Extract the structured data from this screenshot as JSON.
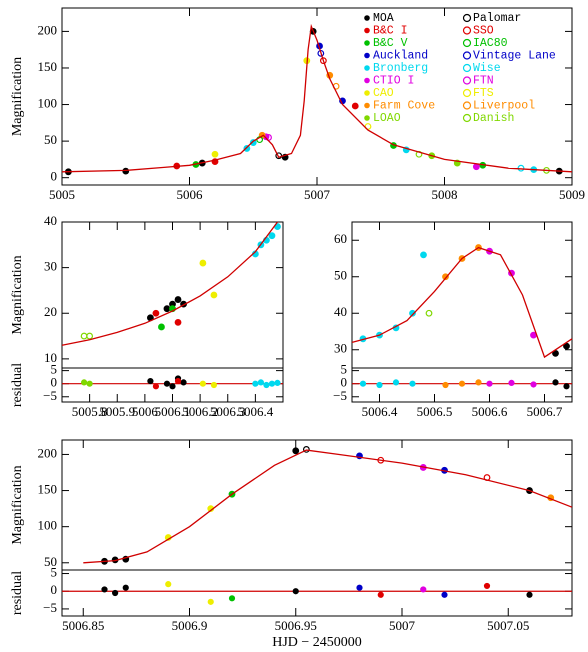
{
  "chart_data": [
    {
      "type": "scatter",
      "ylabel": "Magnification",
      "legend": "upper right",
      "xlim": [
        5005,
        5009
      ],
      "xticks": [
        5005,
        5006,
        5007,
        5008,
        5009
      ],
      "ylim": [
        -10,
        232
      ],
      "yticks": [
        0,
        50,
        100,
        150,
        200
      ],
      "model": {
        "color": "#d00000",
        "x": [
          5005,
          5005.5,
          5005.8,
          5006.0,
          5006.2,
          5006.4,
          5006.5,
          5006.58,
          5006.65,
          5006.7,
          5006.8,
          5006.87,
          5006.9,
          5006.93,
          5006.955,
          5007.0,
          5007.05,
          5007.1,
          5007.2,
          5007.4,
          5007.6,
          5008.0,
          5008.5,
          5009
        ],
        "values": [
          8,
          10,
          14,
          17,
          24,
          33,
          50,
          58,
          45,
          28,
          33,
          58,
          105,
          175,
          207,
          188,
          160,
          135,
          100,
          65,
          45,
          25,
          13,
          8
        ]
      },
      "series": [
        {
          "name": "MOA",
          "color": "#000000",
          "marker": "filled",
          "x": [
            5005.05,
            5005.5,
            5006.1,
            5006.75,
            5006.97,
            5008.9
          ],
          "values": [
            8,
            9,
            20,
            28,
            200,
            9
          ]
        },
        {
          "name": "B&C I",
          "color": "#e00000",
          "marker": "filled",
          "x": [
            5005.9,
            5006.2,
            5007.3
          ],
          "values": [
            16,
            22,
            98
          ]
        },
        {
          "name": "B&C V",
          "color": "#00c000",
          "marker": "filled",
          "x": [
            5006.05,
            5007.6,
            5008.3
          ],
          "values": [
            18,
            44,
            17
          ]
        },
        {
          "name": "Auckland",
          "color": "#0000c8",
          "marker": "filled",
          "x": [
            5007.02,
            5007.2
          ],
          "values": [
            180,
            105
          ]
        },
        {
          "name": "Bronberg",
          "color": "#00d8ee",
          "marker": "filled",
          "x": [
            5006.45,
            5006.5,
            5007.7,
            5008.7
          ],
          "values": [
            40,
            48,
            38,
            11
          ]
        },
        {
          "name": "CTIO I",
          "color": "#e000e0",
          "marker": "filled",
          "x": [
            5006.6,
            5008.25
          ],
          "values": [
            56,
            15
          ]
        },
        {
          "name": "CAO",
          "color": "#eeee00",
          "marker": "filled",
          "x": [
            5006.2,
            5006.92
          ],
          "values": [
            32,
            160
          ]
        },
        {
          "name": "Farm Cove",
          "color": "#ff8c00",
          "marker": "filled",
          "x": [
            5006.57,
            5007.1
          ],
          "values": [
            58,
            140
          ]
        },
        {
          "name": "LOAO",
          "color": "#80d800",
          "marker": "filled",
          "x": [
            5007.9,
            5008.1
          ],
          "values": [
            30,
            20
          ]
        },
        {
          "name": "Palomar",
          "color": "#000000",
          "marker": "open",
          "x": [
            5006.7
          ],
          "values": [
            30
          ]
        },
        {
          "name": "SSO",
          "color": "#e00000",
          "marker": "open",
          "x": [
            5007.05
          ],
          "values": [
            160
          ]
        },
        {
          "name": "IAC80",
          "color": "#00c000",
          "marker": "open",
          "x": [
            5006.55
          ],
          "values": [
            52
          ]
        },
        {
          "name": "Vintage Lane",
          "color": "#0000c8",
          "marker": "open",
          "x": [
            5007.03
          ],
          "values": [
            170
          ]
        },
        {
          "name": "Wise",
          "color": "#00d8ee",
          "marker": "open",
          "x": [
            5008.6
          ],
          "values": [
            13
          ]
        },
        {
          "name": "FTN",
          "color": "#e000e0",
          "marker": "open",
          "x": [
            5006.62
          ],
          "values": [
            55
          ]
        },
        {
          "name": "FTS",
          "color": "#eeee00",
          "marker": "open",
          "x": [
            5007.4
          ],
          "values": [
            70
          ]
        },
        {
          "name": "Liverpool",
          "color": "#ff8c00",
          "marker": "open",
          "x": [
            5007.15
          ],
          "values": [
            125
          ]
        },
        {
          "name": "Danish",
          "color": "#80d800",
          "marker": "open",
          "x": [
            5007.8,
            5008.8
          ],
          "values": [
            32,
            10
          ]
        }
      ]
    },
    {
      "type": "scatter",
      "ylabel": "Magnification",
      "xlim": [
        5005.7,
        5006.5
      ],
      "xticks": [
        5005.8,
        5005.9,
        5006,
        5006.1,
        5006.2,
        5006.3,
        5006.4
      ],
      "ylim": [
        8,
        40
      ],
      "yticks": [
        10,
        20,
        30,
        40
      ],
      "model": {
        "color": "#d00000",
        "x": [
          5005.7,
          5005.8,
          5005.9,
          5006.0,
          5006.1,
          5006.2,
          5006.3,
          5006.4,
          5006.48
        ],
        "values": [
          13,
          14.2,
          15.8,
          17.8,
          20.5,
          23.8,
          28,
          33.5,
          40
        ]
      },
      "series": [
        {
          "color": "#80d800",
          "marker": "open",
          "x": [
            5005.78,
            5005.8
          ],
          "values": [
            15,
            15
          ]
        },
        {
          "color": "#000000",
          "marker": "filled",
          "x": [
            5006.02,
            5006.08,
            5006.1,
            5006.12,
            5006.14
          ],
          "values": [
            19,
            21,
            22,
            23,
            22
          ]
        },
        {
          "color": "#00c000",
          "marker": "filled",
          "x": [
            5006.06,
            5006.1
          ],
          "values": [
            17,
            21
          ]
        },
        {
          "color": "#e00000",
          "marker": "filled",
          "x": [
            5006.04,
            5006.12
          ],
          "values": [
            20,
            18
          ]
        },
        {
          "color": "#eeee00",
          "marker": "filled",
          "x": [
            5006.21,
            5006.25
          ],
          "values": [
            31,
            24
          ]
        },
        {
          "color": "#00d8ee",
          "marker": "filled",
          "x": [
            5006.4,
            5006.42,
            5006.44,
            5006.46,
            5006.48
          ],
          "values": [
            33,
            35,
            36,
            37,
            39
          ]
        }
      ],
      "residual": {
        "ylabel": "residual",
        "ylim": [
          -7,
          6
        ],
        "yticks": [
          {
            "value": -5,
            "label": "−5"
          },
          0,
          5
        ],
        "series": [
          {
            "color": "#80d800",
            "x": [
              5005.78,
              5005.8
            ],
            "values": [
              0.5,
              0
            ]
          },
          {
            "color": "#000000",
            "x": [
              5006.02,
              5006.08,
              5006.1,
              5006.12,
              5006.14
            ],
            "values": [
              1,
              0,
              -1,
              2,
              0.5
            ]
          },
          {
            "color": "#e00000",
            "x": [
              5006.04,
              5006.12
            ],
            "values": [
              -1,
              1
            ]
          },
          {
            "color": "#eeee00",
            "x": [
              5006.21,
              5006.25
            ],
            "values": [
              0,
              -0.5
            ]
          },
          {
            "color": "#00d8ee",
            "x": [
              5006.4,
              5006.42,
              5006.44,
              5006.46,
              5006.48
            ],
            "values": [
              0,
              0.5,
              -0.5,
              0,
              0.3
            ]
          }
        ]
      }
    },
    {
      "type": "scatter",
      "xlim": [
        5006.35,
        5006.75
      ],
      "xticks": [
        5006.4,
        5006.5,
        5006.6,
        5006.7
      ],
      "ylim": [
        25,
        65
      ],
      "yticks": [
        30,
        40,
        50,
        60
      ],
      "model": {
        "color": "#d00000",
        "x": [
          5006.35,
          5006.4,
          5006.45,
          5006.5,
          5006.55,
          5006.58,
          5006.62,
          5006.66,
          5006.7,
          5006.75
        ],
        "values": [
          32,
          34,
          38,
          46,
          55,
          58,
          56,
          45,
          28,
          33
        ]
      },
      "series": [
        {
          "color": "#00d8ee",
          "marker": "filled",
          "x": [
            5006.37,
            5006.4,
            5006.43,
            5006.46,
            5006.48
          ],
          "values": [
            33,
            34,
            36,
            40,
            56
          ]
        },
        {
          "color": "#ff8c00",
          "marker": "filled",
          "x": [
            5006.52,
            5006.55,
            5006.58
          ],
          "values": [
            50,
            55,
            58
          ]
        },
        {
          "color": "#e000e0",
          "marker": "filled",
          "x": [
            5006.6,
            5006.64,
            5006.68
          ],
          "values": [
            57,
            51,
            34
          ]
        },
        {
          "color": "#000000",
          "marker": "filled",
          "x": [
            5006.72,
            5006.74
          ],
          "values": [
            29,
            31
          ]
        },
        {
          "color": "#80d800",
          "marker": "open",
          "x": [
            5006.49
          ],
          "values": [
            40
          ]
        }
      ],
      "residual": {
        "ylim": [
          -7,
          6
        ],
        "yticks": [
          {
            "value": -5,
            "label": "−5"
          },
          0,
          5
        ],
        "series": [
          {
            "color": "#00d8ee",
            "x": [
              5006.37,
              5006.4,
              5006.43,
              5006.46
            ],
            "values": [
              0,
              -0.5,
              0.5,
              0
            ]
          },
          {
            "color": "#ff8c00",
            "x": [
              5006.52,
              5006.55,
              5006.58
            ],
            "values": [
              -0.5,
              0,
              0.5
            ]
          },
          {
            "color": "#e000e0",
            "x": [
              5006.6,
              5006.64,
              5006.68
            ],
            "values": [
              0,
              0.3,
              -0.3
            ]
          },
          {
            "color": "#000000",
            "x": [
              5006.72,
              5006.74
            ],
            "values": [
              0.5,
              -1
            ]
          }
        ]
      }
    },
    {
      "type": "scatter",
      "ylabel": "Magnification",
      "xlabel": "HJD − 2450000",
      "xlim": [
        5006.84,
        5007.08
      ],
      "xticks": [
        5006.85,
        5006.9,
        5006.95,
        5007,
        5007.05
      ],
      "ylim": [
        40,
        220
      ],
      "yticks": [
        50,
        100,
        150,
        200
      ],
      "model": {
        "color": "#d00000",
        "x": [
          5006.85,
          5006.865,
          5006.88,
          5006.9,
          5006.92,
          5006.94,
          5006.955,
          5006.97,
          5007.0,
          5007.03,
          5007.06,
          5007.08
        ],
        "values": [
          50,
          53,
          65,
          100,
          145,
          185,
          206,
          200,
          188,
          172,
          150,
          127
        ]
      },
      "series": [
        {
          "color": "#000000",
          "marker": "filled",
          "x": [
            5006.86,
            5006.865,
            5006.87,
            5006.95,
            5007.06
          ],
          "values": [
            52,
            54,
            55,
            205,
            150
          ]
        },
        {
          "color": "#eeee00",
          "marker": "filled",
          "x": [
            5006.89,
            5006.91
          ],
          "values": [
            85,
            125
          ]
        },
        {
          "color": "#00c000",
          "marker": "filled",
          "x": [
            5006.92
          ],
          "values": [
            145
          ]
        },
        {
          "color": "#0000c8",
          "marker": "filled",
          "x": [
            5006.98,
            5007.02
          ],
          "values": [
            198,
            178
          ]
        },
        {
          "color": "#e00000",
          "marker": "open",
          "x": [
            5006.99,
            5007.04
          ],
          "values": [
            192,
            168
          ]
        },
        {
          "color": "#e000e0",
          "marker": "filled",
          "x": [
            5007.01
          ],
          "values": [
            182
          ]
        },
        {
          "color": "#ff8c00",
          "marker": "filled",
          "x": [
            5007.07
          ],
          "values": [
            140
          ]
        },
        {
          "color": "#000000",
          "marker": "open",
          "x": [
            5006.955
          ],
          "values": [
            207
          ]
        }
      ],
      "residual": {
        "ylabel": "residual",
        "ylim": [
          -7,
          6
        ],
        "yticks": [
          {
            "value": -5,
            "label": "−5"
          },
          0,
          5
        ],
        "series": [
          {
            "color": "#000000",
            "x": [
              5006.86,
              5006.865,
              5006.87,
              5006.95,
              5007.06
            ],
            "values": [
              0.5,
              -0.5,
              1,
              0,
              -1
            ]
          },
          {
            "color": "#eeee00",
            "x": [
              5006.89,
              5006.91
            ],
            "values": [
              2,
              -3
            ]
          },
          {
            "color": "#00c000",
            "x": [
              5006.92
            ],
            "values": [
              -2
            ]
          },
          {
            "color": "#0000c8",
            "x": [
              5006.98,
              5007.02
            ],
            "values": [
              1,
              -1
            ]
          },
          {
            "color": "#e00000",
            "x": [
              5006.99,
              5007.04
            ],
            "values": [
              -1,
              1.5
            ]
          },
          {
            "color": "#e000e0",
            "x": [
              5007.01
            ],
            "values": [
              0.5
            ]
          }
        ]
      }
    }
  ]
}
